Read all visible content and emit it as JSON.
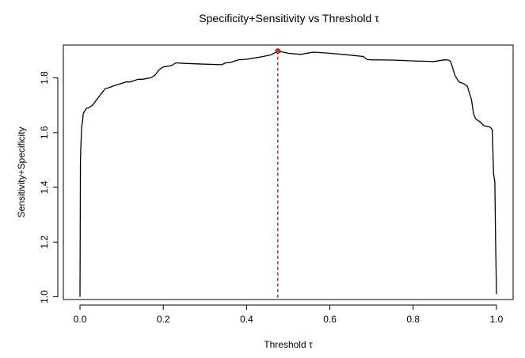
{
  "chart_data": {
    "type": "line",
    "title": "Specificity+Sensitivity vs Threshold τ",
    "xlabel": "Threshold τ",
    "ylabel": "Sensitivity+Specificity",
    "xlim": [
      -0.04,
      1.04
    ],
    "ylim": [
      0.99,
      1.92
    ],
    "xticks": [
      0.0,
      0.2,
      0.4,
      0.6,
      0.8,
      1.0
    ],
    "xtick_labels": [
      "0.0",
      "0.2",
      "0.4",
      "0.6",
      "0.8",
      "1.0"
    ],
    "yticks": [
      1.0,
      1.2,
      1.4,
      1.6,
      1.8
    ],
    "ytick_labels": [
      "1.0",
      "1.2",
      "1.4",
      "1.6",
      "1.8"
    ],
    "grid": false,
    "series": [
      {
        "color": "#000000",
        "x": [
          0.0,
          0.001,
          0.002,
          0.004,
          0.006,
          0.008,
          0.012,
          0.016,
          0.02,
          0.03,
          0.04,
          0.05,
          0.06,
          0.07,
          0.08,
          0.1,
          0.11,
          0.12,
          0.14,
          0.15,
          0.17,
          0.18,
          0.19,
          0.2,
          0.22,
          0.23,
          0.25,
          0.3,
          0.34,
          0.35,
          0.36,
          0.38,
          0.4,
          0.42,
          0.44,
          0.46,
          0.475,
          0.5,
          0.53,
          0.56,
          0.6,
          0.65,
          0.68,
          0.69,
          0.7,
          0.75,
          0.8,
          0.85,
          0.875,
          0.885,
          0.89,
          0.9,
          0.91,
          0.92,
          0.93,
          0.94,
          0.945,
          0.95,
          0.96,
          0.97,
          0.985,
          0.99,
          0.993,
          0.996,
          0.998,
          1.0
        ],
        "y": [
          1.0,
          1.5,
          1.55,
          1.62,
          1.64,
          1.67,
          1.68,
          1.69,
          1.69,
          1.7,
          1.72,
          1.74,
          1.76,
          1.765,
          1.77,
          1.78,
          1.785,
          1.785,
          1.795,
          1.795,
          1.8,
          1.81,
          1.83,
          1.84,
          1.845,
          1.855,
          1.853,
          1.85,
          1.848,
          1.855,
          1.856,
          1.866,
          1.868,
          1.873,
          1.878,
          1.885,
          1.898,
          1.89,
          1.886,
          1.894,
          1.89,
          1.883,
          1.878,
          1.867,
          1.866,
          1.865,
          1.862,
          1.86,
          1.866,
          1.865,
          1.86,
          1.81,
          1.785,
          1.78,
          1.77,
          1.72,
          1.67,
          1.65,
          1.64,
          1.625,
          1.62,
          1.61,
          1.45,
          1.42,
          1.2,
          1.01
        ]
      }
    ],
    "vline": {
      "x": 0.475,
      "color": "#8b0000",
      "style": "dashed"
    },
    "optimal_point": {
      "x": 0.475,
      "y": 1.898,
      "color": "#cc3333"
    }
  }
}
